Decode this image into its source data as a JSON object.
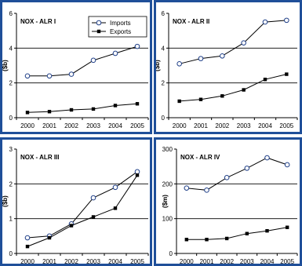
{
  "chart_data": [
    {
      "type": "line",
      "title": "NOX - ALR I",
      "ylabel": "($b)",
      "xlabel": "",
      "ylim": [
        0,
        6
      ],
      "yticks": [
        0,
        2,
        4,
        6
      ],
      "grid": "major y at 2 and 4",
      "categories": [
        "2000",
        "2001",
        "2002",
        "2003",
        "2004",
        "2005"
      ],
      "legend": "top-right",
      "series": [
        {
          "name": "Imports",
          "marker": "open-circle",
          "values": [
            2.4,
            2.4,
            2.5,
            3.3,
            3.7,
            4.1
          ]
        },
        {
          "name": "Exports",
          "marker": "filled-square",
          "values": [
            0.3,
            0.35,
            0.45,
            0.5,
            0.7,
            0.8
          ]
        }
      ]
    },
    {
      "type": "line",
      "title": "NOX - ALR II",
      "ylabel": "($b)",
      "xlabel": "",
      "ylim": [
        0,
        6
      ],
      "yticks": [
        0,
        2,
        4,
        6
      ],
      "grid": "major y at 2 and 4",
      "categories": [
        "2000",
        "2001",
        "2002",
        "2003",
        "2004",
        "2005"
      ],
      "series": [
        {
          "name": "Imports",
          "marker": "open-circle",
          "values": [
            3.1,
            3.4,
            3.55,
            4.3,
            5.5,
            5.6
          ]
        },
        {
          "name": "Exports",
          "marker": "filled-square",
          "values": [
            0.95,
            1.05,
            1.25,
            1.6,
            2.2,
            2.5
          ]
        }
      ]
    },
    {
      "type": "line",
      "title": "NOX - ALR III",
      "ylabel": "($b)",
      "xlabel": "",
      "ylim": [
        0,
        3
      ],
      "yticks": [
        0,
        1,
        2,
        3
      ],
      "grid": "major y at 1 and 2",
      "categories": [
        "2000",
        "2001",
        "2002",
        "2003",
        "2004",
        "2005"
      ],
      "series": [
        {
          "name": "Imports",
          "marker": "open-circle",
          "values": [
            0.45,
            0.5,
            0.85,
            1.6,
            1.9,
            2.35
          ]
        },
        {
          "name": "Exports",
          "marker": "filled-square",
          "values": [
            0.2,
            0.45,
            0.8,
            1.05,
            1.3,
            2.25
          ]
        }
      ]
    },
    {
      "type": "line",
      "title": "NOX - ALR IV",
      "ylabel": "($m)",
      "xlabel": "",
      "ylim": [
        0,
        300
      ],
      "yticks": [
        0,
        100,
        200,
        300
      ],
      "grid": "major y at 100 and 200",
      "categories": [
        "2000",
        "2001",
        "2002",
        "2003",
        "2004",
        "2005"
      ],
      "series": [
        {
          "name": "Imports",
          "marker": "open-circle",
          "values": [
            188,
            182,
            218,
            245,
            275,
            255
          ]
        },
        {
          "name": "Exports",
          "marker": "filled-square",
          "values": [
            40,
            40,
            43,
            57,
            65,
            75
          ]
        }
      ]
    }
  ],
  "colors": {
    "panel_border": "#1f4f99",
    "imports_marker_fill": "#ffffff",
    "imports_marker_stroke": "#1f3f88",
    "exports_marker": "#000000",
    "line": "#000000"
  }
}
